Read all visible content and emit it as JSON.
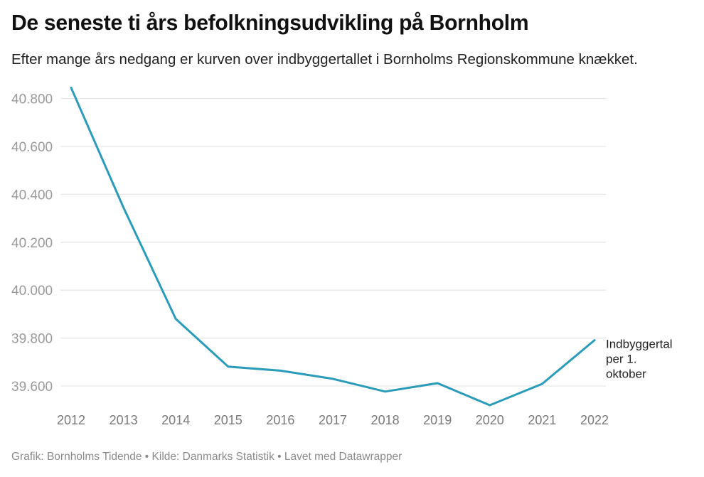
{
  "header": {
    "title": "De seneste ti års befolkningsudvikling på Bornholm",
    "subtitle": "Efter mange års nedgang er kurven over indbyggertallet i Bornholms Regionskommune knækket."
  },
  "footer": {
    "text": "Grafik: Bornholms Tidende • Kilde: Danmarks Statistik • Lavet med Datawrapper"
  },
  "colors": {
    "line": "#2a9bb8",
    "grid": "#e6e6e6",
    "axis_text": "#9a9a9a",
    "label_text": "#222222"
  },
  "chart_data": {
    "type": "line",
    "title": "De seneste ti års befolkningsudvikling på Bornholm",
    "subtitle": "Efter mange års nedgang er kurven over indbyggertallet i Bornholms Regionskommune knækket.",
    "xlabel": "",
    "ylabel": "",
    "categories": [
      "2012",
      "2013",
      "2014",
      "2015",
      "2016",
      "2017",
      "2018",
      "2019",
      "2020",
      "2021",
      "2022"
    ],
    "series": [
      {
        "name": "Indbyggertal per 1. oktober",
        "values": [
          40845,
          40345,
          39880,
          39681,
          39664,
          39630,
          39577,
          39612,
          39520,
          39609,
          39791
        ]
      }
    ],
    "yticks": [
      39600,
      39800,
      40000,
      40200,
      40400,
      40600,
      40800
    ],
    "ytick_labels": [
      "39.600",
      "39.800",
      "40.000",
      "40.200",
      "40.400",
      "40.600",
      "40.800"
    ],
    "ylim": [
      39500,
      40850
    ],
    "grid": true,
    "legend": "inline label at line end",
    "series_label_lines": [
      "Indbyggertal",
      "per 1.",
      "oktober"
    ]
  }
}
